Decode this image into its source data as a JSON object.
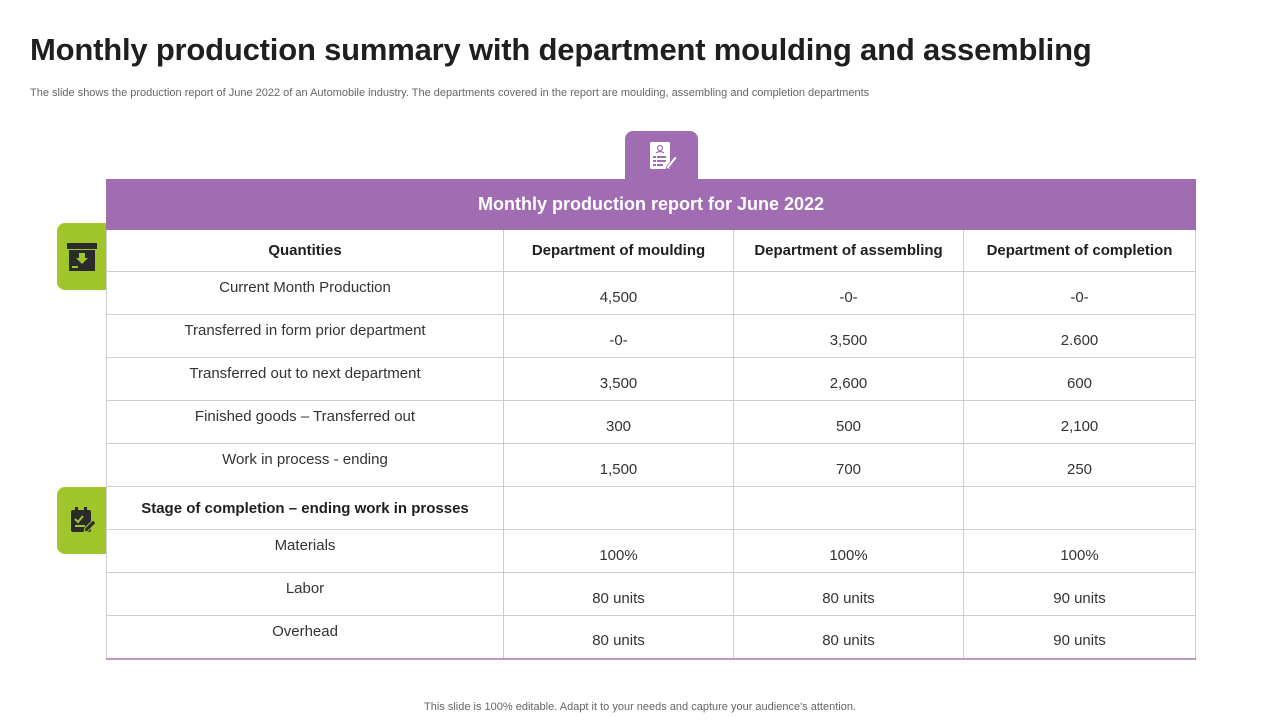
{
  "title": "Monthly production summary with department moulding and assembling",
  "subtitle": "The slide shows the production report of June 2022 of an Automobile industry. The departments covered in the report are moulding, assembling and completion departments",
  "icons": {
    "top": "report-document-icon",
    "side1": "archive-box-icon",
    "side2": "task-checklist-icon"
  },
  "colors": {
    "purple": "#a06cb2",
    "green": "#9fc72b"
  },
  "table": {
    "band_title": "Monthly production report for  June 2022",
    "headers": [
      "Quantities",
      "Department of moulding",
      "Department of assembling",
      "Department of completion"
    ],
    "rows": [
      {
        "label": "Current Month Production",
        "values": [
          "4,500",
          "-0-",
          "-0-"
        ]
      },
      {
        "label": "Transferred  in form prior department",
        "values": [
          "-0-",
          "3,500",
          "2.600"
        ]
      },
      {
        "label": "Transferred  out to next department",
        "values": [
          "3,500",
          "2,600",
          "600"
        ]
      },
      {
        "label": "Finished goods – Transferred out",
        "values": [
          "300",
          "500",
          "2,100"
        ]
      },
      {
        "label": "Work in process - ending",
        "values": [
          "1,500",
          "700",
          "250"
        ]
      }
    ],
    "section_label": "Stage of completion – ending work in prosses",
    "rows2": [
      {
        "label": "Materials",
        "values": [
          "100%",
          "100%",
          "100%"
        ]
      },
      {
        "label": "Labor",
        "values": [
          "80 units",
          "80 units",
          "90 units"
        ]
      },
      {
        "label": "Overhead",
        "values": [
          "80 units",
          "80 units",
          "90 units"
        ]
      }
    ]
  },
  "footer": "This slide is 100% editable. Adapt it to your needs and capture your audience's attention."
}
